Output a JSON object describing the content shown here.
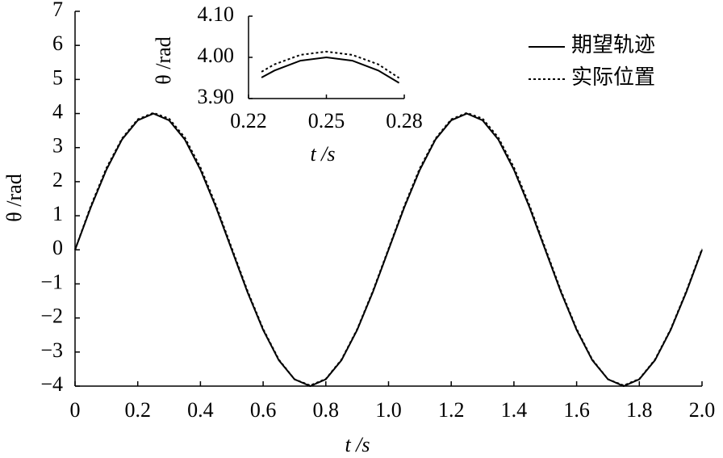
{
  "chart_data": [
    {
      "type": "line",
      "x_label": "t /s",
      "y_label": "θ /rad",
      "xlim": [
        0,
        2
      ],
      "ylim": [
        -4,
        7
      ],
      "xticks": [
        0,
        0.2,
        0.4,
        0.6,
        0.8,
        {
          "value": 1,
          "label": "1.0"
        },
        1.2,
        1.4,
        1.6,
        1.8,
        {
          "value": 2,
          "label": "2.0"
        }
      ],
      "yticks": [
        {
          "value": -4,
          "label": "−4"
        },
        {
          "value": -3,
          "label": "−3"
        },
        {
          "value": -2,
          "label": "−2"
        },
        {
          "value": -1,
          "label": "−1"
        },
        0,
        1,
        2,
        3,
        4,
        5,
        6,
        7
      ],
      "legend": "upper right",
      "x": [
        0,
        0.05,
        0.1,
        0.15,
        0.2,
        0.25,
        0.3,
        0.35,
        0.4,
        0.45,
        0.5,
        0.55,
        0.6,
        0.65,
        0.7,
        0.75,
        0.8,
        0.85,
        0.9,
        0.95,
        1.0,
        1.05,
        1.1,
        1.15,
        1.2,
        1.25,
        1.3,
        1.35,
        1.4,
        1.45,
        1.5,
        1.55,
        1.6,
        1.65,
        1.7,
        1.75,
        1.8,
        1.85,
        1.9,
        1.95,
        2.0
      ],
      "series": [
        {
          "name": "期望轨迹",
          "color": "#000000",
          "linestyle": "solid",
          "values": [
            0,
            1.24,
            2.35,
            3.24,
            3.8,
            4,
            3.8,
            3.24,
            2.35,
            1.24,
            0,
            -1.24,
            -2.35,
            -3.24,
            -3.8,
            -4,
            -3.8,
            -3.24,
            -2.35,
            -1.24,
            0,
            1.24,
            2.35,
            3.24,
            3.8,
            4,
            3.8,
            3.24,
            2.35,
            1.24,
            0,
            -1.24,
            -2.35,
            -3.24,
            -3.8,
            -4,
            -3.8,
            -3.24,
            -2.35,
            -1.24,
            0
          ]
        },
        {
          "name": "实际位置",
          "color": "#000000",
          "linestyle": "dotted",
          "values": [
            0,
            1.28,
            2.4,
            3.27,
            3.83,
            4.02,
            3.85,
            3.3,
            2.42,
            1.3,
            0.05,
            -1.2,
            -2.32,
            -3.22,
            -3.8,
            -3.98,
            -3.79,
            -3.22,
            -2.33,
            -1.21,
            0.03,
            1.28,
            2.4,
            3.27,
            3.83,
            4.02,
            3.85,
            3.3,
            2.42,
            1.3,
            0.05,
            -1.2,
            -2.32,
            -3.22,
            -3.8,
            -3.98,
            -3.79,
            -3.22,
            -2.33,
            -1.21,
            0.03
          ]
        }
      ]
    },
    {
      "type": "line",
      "x_label": "t /s",
      "y_label": "θ /rad",
      "xlim": [
        0.22,
        0.28
      ],
      "ylim": [
        3.9,
        4.1
      ],
      "xticks": [
        0.22,
        0.25,
        0.28
      ],
      "yticks": [
        {
          "value": 3.9,
          "label": "3.90"
        },
        {
          "value": 4,
          "label": "4.00"
        },
        {
          "value": 4.1,
          "label": "4.10"
        }
      ],
      "x": [
        0.225,
        0.23,
        0.24,
        0.25,
        0.26,
        0.27,
        0.278
      ],
      "series": [
        {
          "name": "期望轨迹",
          "color": "#000000",
          "linestyle": "solid",
          "values": [
            3.951,
            3.968,
            3.992,
            4,
            3.992,
            3.968,
            3.938
          ]
        },
        {
          "name": "实际位置",
          "color": "#000000",
          "linestyle": "dotted",
          "values": [
            3.965,
            3.983,
            4.006,
            4.014,
            4.006,
            3.983,
            3.95
          ]
        }
      ]
    }
  ]
}
